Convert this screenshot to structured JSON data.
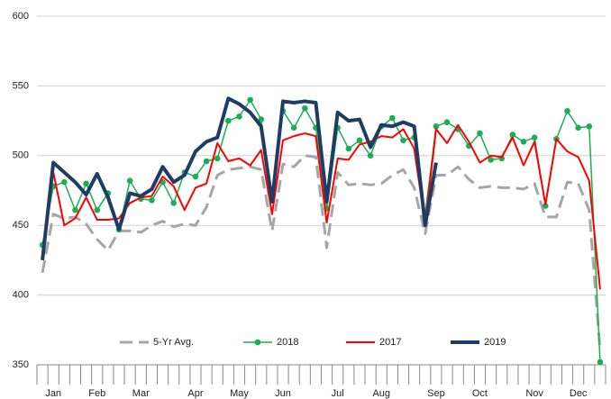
{
  "chart_data": {
    "type": "line",
    "categories": [
      null,
      "Jan",
      null,
      null,
      null,
      "Feb",
      null,
      null,
      null,
      "Mar",
      null,
      null,
      null,
      null,
      "Apr",
      null,
      null,
      null,
      "May",
      null,
      null,
      null,
      "Jun",
      null,
      null,
      null,
      null,
      "Jul",
      null,
      null,
      null,
      "Aug",
      null,
      null,
      null,
      null,
      "Sep",
      null,
      null,
      null,
      "Oct",
      null,
      null,
      null,
      null,
      "Nov",
      null,
      null,
      null,
      "Dec",
      null,
      null
    ],
    "series": [
      {
        "name": "5-Yr Avg.",
        "color": "#a6a6a6",
        "dashed": true,
        "markers": false,
        "line_width": 3,
        "values": [
          416,
          458,
          455,
          456,
          451,
          440,
          432,
          446,
          446,
          445,
          450,
          453,
          449,
          451,
          450,
          463,
          486,
          490,
          491,
          492,
          490,
          446,
          494,
          492,
          500,
          499,
          434,
          488,
          479,
          480,
          479,
          480,
          486,
          490,
          477,
          444,
          486,
          486,
          492,
          483,
          477,
          478,
          477,
          477,
          476,
          480,
          456,
          456,
          481,
          480,
          461,
          360
        ]
      },
      {
        "name": "2018",
        "color": "#1aaf54",
        "dashed": false,
        "markers": true,
        "line_width": 1.5,
        "values": [
          436,
          478,
          481,
          461,
          480,
          461,
          473,
          447,
          482,
          469,
          468,
          481,
          466,
          488,
          485,
          496,
          498,
          525,
          528,
          540,
          526,
          470,
          532,
          520,
          534,
          520,
          462,
          520,
          505,
          511,
          500,
          521,
          527,
          511,
          513,
          458,
          521,
          524,
          519,
          507,
          516,
          497,
          498,
          515,
          510,
          513,
          464,
          512,
          532,
          520,
          521,
          352
        ]
      },
      {
        "name": "2017",
        "color": "#ff0000",
        "dashed": false,
        "markers": false,
        "line_width": 2,
        "values": [
          430,
          488,
          450,
          455,
          470,
          454,
          454,
          455,
          466,
          470,
          471,
          485,
          478,
          461,
          477,
          480,
          509,
          496,
          498,
          493,
          504,
          458,
          511,
          514,
          516,
          514,
          452,
          498,
          497,
          508,
          510,
          514,
          513,
          519,
          505,
          451,
          519,
          509,
          522,
          510,
          495,
          500,
          499,
          513,
          493,
          510,
          465,
          512,
          503,
          499,
          482,
          404
        ]
      },
      {
        "name": "2019",
        "color": "#1f3c66",
        "dashed": false,
        "markers": false,
        "line_width": 4,
        "values": [
          425,
          495,
          488,
          481,
          472,
          487,
          470,
          447,
          473,
          471,
          476,
          492,
          481,
          486,
          503,
          510,
          513,
          541,
          537,
          531,
          521,
          467,
          539,
          538,
          539,
          538,
          467,
          531,
          525,
          526,
          506,
          522,
          521,
          524,
          521,
          450,
          495,
          null,
          null,
          null,
          null,
          null,
          null,
          null,
          null,
          null,
          null,
          null,
          null,
          null,
          null,
          null
        ]
      }
    ],
    "ylim": [
      350,
      600
    ],
    "yticks": [
      350,
      400,
      450,
      500,
      550,
      600
    ],
    "grid": true,
    "legend": "bottom"
  }
}
